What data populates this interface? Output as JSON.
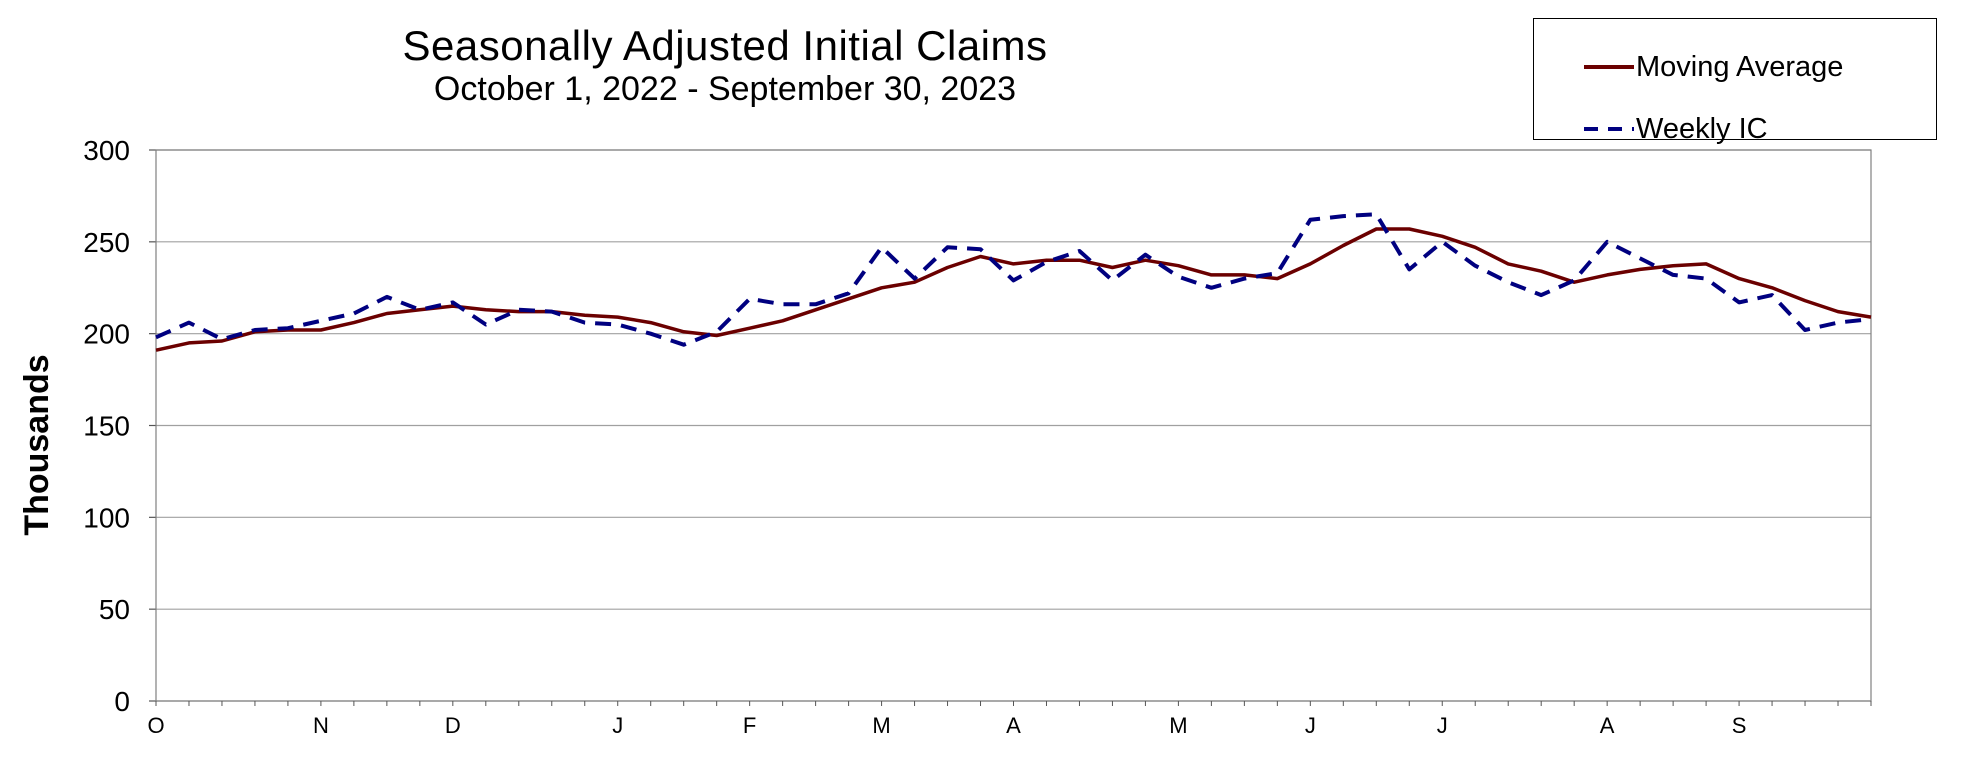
{
  "chart_data": {
    "type": "line",
    "title": "Seasonally Adjusted Initial Claims",
    "subtitle": "October 1, 2022 - September 30, 2023",
    "ylabel": "Thousands",
    "xlabel": "",
    "ylim": [
      0,
      300
    ],
    "yticks": [
      0,
      50,
      100,
      150,
      200,
      250,
      300
    ],
    "x_tick_labels": [
      "O",
      "N",
      "D",
      "J",
      "F",
      "M",
      "A",
      "M",
      "J",
      "J",
      "A",
      "S"
    ],
    "x_tick_weeks": [
      0,
      5,
      9,
      14,
      18,
      22,
      26,
      31,
      35,
      39,
      44,
      48
    ],
    "grid": true,
    "legend_position": "top-right",
    "series": [
      {
        "name": "Moving Average",
        "color": "#6b0000",
        "style": "solid",
        "values": [
          191,
          195,
          196,
          201,
          202,
          202,
          206,
          211,
          213,
          215,
          213,
          212,
          212,
          210,
          209,
          206,
          201,
          199,
          203,
          207,
          213,
          219,
          225,
          228,
          236,
          242,
          238,
          240,
          240,
          236,
          240,
          237,
          232,
          232,
          230,
          238,
          248,
          257,
          257,
          253,
          247,
          238,
          234,
          228,
          232,
          235,
          237,
          238,
          230,
          225,
          218,
          212,
          209
        ]
      },
      {
        "name": "Weekly IC",
        "color": "#000080",
        "style": "dashed",
        "values": [
          198,
          206,
          197,
          202,
          203,
          207,
          211,
          220,
          213,
          217,
          205,
          213,
          212,
          206,
          205,
          200,
          194,
          201,
          219,
          216,
          216,
          222,
          247,
          230,
          247,
          246,
          229,
          239,
          245,
          229,
          243,
          231,
          225,
          230,
          233,
          262,
          264,
          265,
          235,
          250,
          237,
          228,
          221,
          229,
          250,
          241,
          232,
          230,
          217,
          221,
          202,
          206,
          208
        ]
      }
    ]
  }
}
